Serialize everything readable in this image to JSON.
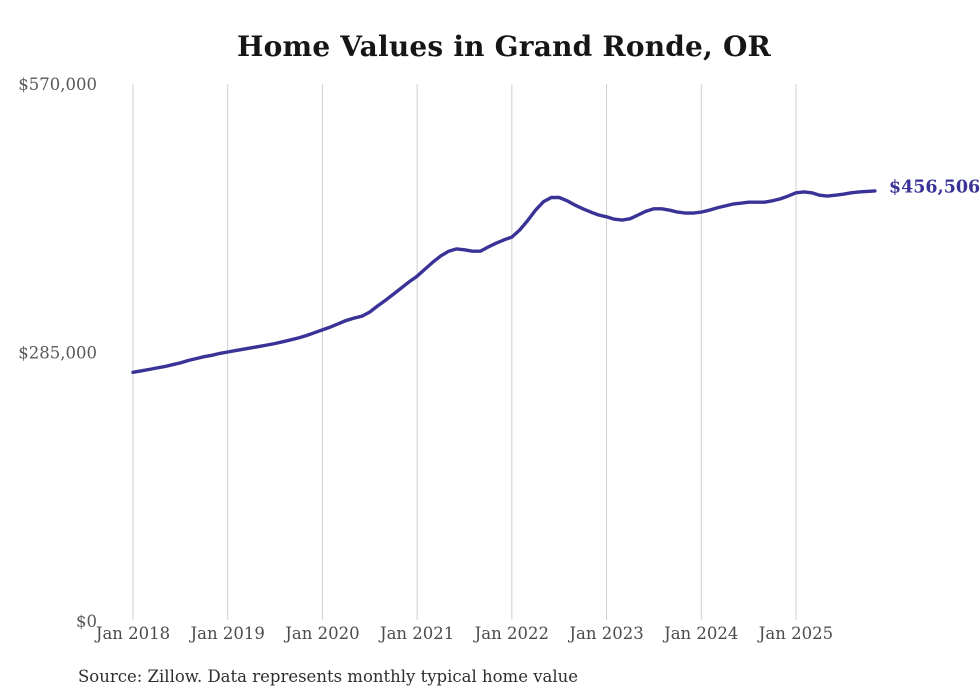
{
  "title": "Home Values in Grand Ronde, OR",
  "source_note": "Source: Zillow. Data represents monthly typical home value",
  "colors": {
    "line": "#3a3397",
    "end_label": "#3a3397",
    "gridline": "#cfcfcf",
    "y_tick_label": "#585858",
    "x_tick_label": "#4c4c4c",
    "title": "#161616",
    "background": "#ffffff"
  },
  "chart_data": {
    "type": "line",
    "title": "Home Values in Grand Ronde, OR",
    "series_name": "Monthly typical home value",
    "legend": "none",
    "grid": "vertical-only",
    "ylim": [
      0,
      570000
    ],
    "y_ticks": [
      {
        "value": 570000,
        "label": "$570,000"
      },
      {
        "value": 285000,
        "label": "$285,000"
      },
      {
        "value": 0,
        "label": "$0"
      }
    ],
    "x_tick_labels": [
      "Jan 2018",
      "Jan 2019",
      "Jan 2020",
      "Jan 2021",
      "Jan 2022",
      "Jan 2023",
      "Jan 2024",
      "Jan 2025"
    ],
    "end_label": "$456,506",
    "end_value": 456506,
    "points": [
      [
        "2018-01",
        264000
      ],
      [
        "2018-02",
        265500
      ],
      [
        "2018-03",
        267000
      ],
      [
        "2018-04",
        268500
      ],
      [
        "2018-05",
        270000
      ],
      [
        "2018-06",
        272000
      ],
      [
        "2018-07",
        274000
      ],
      [
        "2018-08",
        276500
      ],
      [
        "2018-09",
        278500
      ],
      [
        "2018-10",
        280500
      ],
      [
        "2018-11",
        282000
      ],
      [
        "2018-12",
        284000
      ],
      [
        "2019-01",
        285500
      ],
      [
        "2019-02",
        287000
      ],
      [
        "2019-03",
        288500
      ],
      [
        "2019-04",
        290000
      ],
      [
        "2019-05",
        291500
      ],
      [
        "2019-06",
        293000
      ],
      [
        "2019-07",
        294500
      ],
      [
        "2019-08",
        296500
      ],
      [
        "2019-09",
        298500
      ],
      [
        "2019-10",
        300500
      ],
      [
        "2019-11",
        303000
      ],
      [
        "2019-12",
        306000
      ],
      [
        "2020-01",
        309000
      ],
      [
        "2020-02",
        312000
      ],
      [
        "2020-03",
        315500
      ],
      [
        "2020-04",
        319000
      ],
      [
        "2020-05",
        321500
      ],
      [
        "2020-06",
        323500
      ],
      [
        "2020-07",
        328000
      ],
      [
        "2020-08",
        334500
      ],
      [
        "2020-09",
        340500
      ],
      [
        "2020-10",
        347000
      ],
      [
        "2020-11",
        353500
      ],
      [
        "2020-12",
        360000
      ],
      [
        "2021-01",
        366000
      ],
      [
        "2021-02",
        373500
      ],
      [
        "2021-03",
        381000
      ],
      [
        "2021-04",
        387500
      ],
      [
        "2021-05",
        392500
      ],
      [
        "2021-06",
        395000
      ],
      [
        "2021-07",
        394000
      ],
      [
        "2021-08",
        392500
      ],
      [
        "2021-09",
        392500
      ],
      [
        "2021-10",
        397000
      ],
      [
        "2021-11",
        401000
      ],
      [
        "2021-12",
        404500
      ],
      [
        "2022-01",
        407500
      ],
      [
        "2022-02",
        415000
      ],
      [
        "2022-03",
        425000
      ],
      [
        "2022-04",
        436000
      ],
      [
        "2022-05",
        445000
      ],
      [
        "2022-06",
        449500
      ],
      [
        "2022-07",
        449500
      ],
      [
        "2022-08",
        446000
      ],
      [
        "2022-09",
        441500
      ],
      [
        "2022-10",
        437500
      ],
      [
        "2022-11",
        434000
      ],
      [
        "2022-12",
        431000
      ],
      [
        "2023-01",
        429000
      ],
      [
        "2023-02",
        426500
      ],
      [
        "2023-03",
        425500
      ],
      [
        "2023-04",
        427000
      ],
      [
        "2023-05",
        431000
      ],
      [
        "2023-06",
        435000
      ],
      [
        "2023-07",
        437500
      ],
      [
        "2023-08",
        437500
      ],
      [
        "2023-09",
        436000
      ],
      [
        "2023-10",
        434000
      ],
      [
        "2023-11",
        433000
      ],
      [
        "2023-12",
        433000
      ],
      [
        "2024-01",
        434000
      ],
      [
        "2024-02",
        436000
      ],
      [
        "2024-03",
        438500
      ],
      [
        "2024-04",
        440500
      ],
      [
        "2024-05",
        442500
      ],
      [
        "2024-06",
        443500
      ],
      [
        "2024-07",
        444500
      ],
      [
        "2024-08",
        444500
      ],
      [
        "2024-09",
        444500
      ],
      [
        "2024-10",
        446000
      ],
      [
        "2024-11",
        448000
      ],
      [
        "2024-12",
        451000
      ],
      [
        "2025-01",
        454500
      ],
      [
        "2025-02",
        455500
      ],
      [
        "2025-03",
        454500
      ],
      [
        "2025-04",
        452000
      ],
      [
        "2025-05",
        451000
      ],
      [
        "2025-06",
        452000
      ],
      [
        "2025-07",
        453000
      ],
      [
        "2025-08",
        454500
      ],
      [
        "2025-09",
        455500
      ],
      [
        "2025-10",
        456000
      ],
      [
        "2025-11",
        456506
      ]
    ]
  }
}
